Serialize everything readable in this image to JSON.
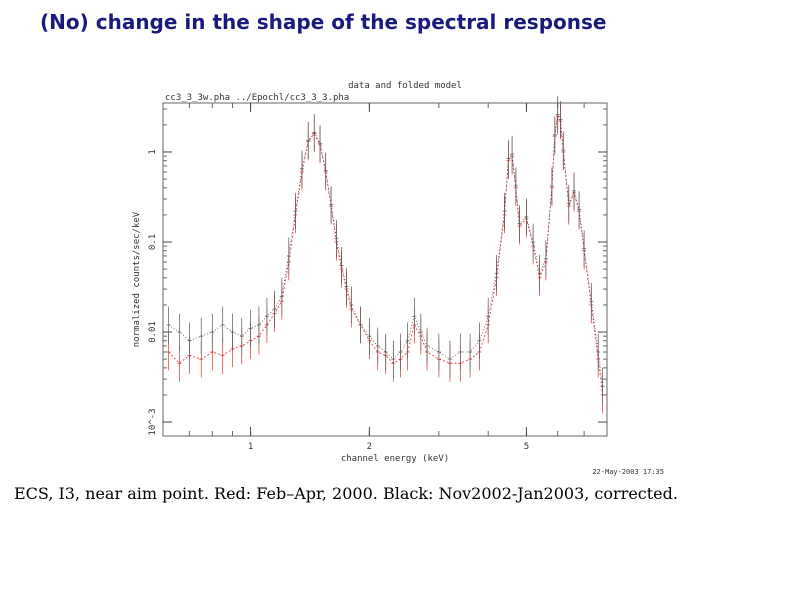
{
  "slide": {
    "title": "(No) change in the shape of the spectral response",
    "caption": "ECS, I3, near aim point. Red: Feb–Apr, 2000. Black: Nov2002-Jan2003, corrected."
  },
  "chart_data": {
    "type": "scatter",
    "title": "data and folded model",
    "subtitle": "cc3_3_3w.pha ../Epochl/cc3_3_3.pha",
    "xlabel": "channel energy (keV)",
    "ylabel": "normalized counts/sec/keV",
    "x_scale": "log",
    "y_scale": "log",
    "xlim": [
      0.6,
      8.0
    ],
    "ylim": [
      0.0007,
      3.5
    ],
    "x_ticks": [
      {
        "value": 1,
        "label": "1"
      },
      {
        "value": 2,
        "label": "2"
      },
      {
        "value": 5,
        "label": "5"
      }
    ],
    "y_ticks": [
      {
        "value": 0.001,
        "label": "10^-3"
      },
      {
        "value": 0.01,
        "label": "0.01"
      },
      {
        "value": 0.1,
        "label": "0.1"
      },
      {
        "value": 1,
        "label": "1"
      }
    ],
    "timestamp": "22-May-2003 17:35",
    "series": [
      {
        "name": "Red: Feb–Apr, 2000",
        "color": "#e03030",
        "points": [
          [
            0.62,
            0.006
          ],
          [
            0.66,
            0.0045
          ],
          [
            0.7,
            0.0055
          ],
          [
            0.75,
            0.005
          ],
          [
            0.8,
            0.006
          ],
          [
            0.85,
            0.0055
          ],
          [
            0.9,
            0.0065
          ],
          [
            0.95,
            0.007
          ],
          [
            1.0,
            0.008
          ],
          [
            1.05,
            0.009
          ],
          [
            1.1,
            0.012
          ],
          [
            1.15,
            0.016
          ],
          [
            1.2,
            0.022
          ],
          [
            1.25,
            0.06
          ],
          [
            1.3,
            0.2
          ],
          [
            1.35,
            0.6
          ],
          [
            1.4,
            1.3
          ],
          [
            1.45,
            1.6
          ],
          [
            1.5,
            1.2
          ],
          [
            1.55,
            0.6
          ],
          [
            1.6,
            0.25
          ],
          [
            1.65,
            0.1
          ],
          [
            1.7,
            0.05
          ],
          [
            1.75,
            0.03
          ],
          [
            1.8,
            0.018
          ],
          [
            1.9,
            0.012
          ],
          [
            2.0,
            0.008
          ],
          [
            2.1,
            0.006
          ],
          [
            2.2,
            0.0055
          ],
          [
            2.3,
            0.0045
          ],
          [
            2.4,
            0.005
          ],
          [
            2.5,
            0.006
          ],
          [
            2.6,
            0.012
          ],
          [
            2.7,
            0.009
          ],
          [
            2.8,
            0.006
          ],
          [
            3.0,
            0.005
          ],
          [
            3.2,
            0.0045
          ],
          [
            3.4,
            0.0045
          ],
          [
            3.6,
            0.005
          ],
          [
            3.8,
            0.006
          ],
          [
            4.0,
            0.012
          ],
          [
            4.2,
            0.04
          ],
          [
            4.4,
            0.2
          ],
          [
            4.5,
            0.8
          ],
          [
            4.6,
            0.9
          ],
          [
            4.7,
            0.4
          ],
          [
            4.8,
            0.15
          ],
          [
            5.0,
            0.18
          ],
          [
            5.2,
            0.09
          ],
          [
            5.4,
            0.04
          ],
          [
            5.6,
            0.06
          ],
          [
            5.8,
            0.4
          ],
          [
            5.9,
            1.5
          ],
          [
            6.0,
            2.5
          ],
          [
            6.1,
            2.2
          ],
          [
            6.2,
            1.0
          ],
          [
            6.4,
            0.25
          ],
          [
            6.6,
            0.35
          ],
          [
            6.8,
            0.22
          ],
          [
            7.0,
            0.08
          ],
          [
            7.3,
            0.02
          ],
          [
            7.6,
            0.005
          ],
          [
            7.8,
            0.002
          ]
        ]
      },
      {
        "name": "Black: Nov2002-Jan2003, corrected",
        "color": "#555555",
        "points": [
          [
            0.62,
            0.012
          ],
          [
            0.66,
            0.01
          ],
          [
            0.7,
            0.008
          ],
          [
            0.75,
            0.009
          ],
          [
            0.8,
            0.01
          ],
          [
            0.85,
            0.012
          ],
          [
            0.9,
            0.01
          ],
          [
            0.95,
            0.009
          ],
          [
            1.0,
            0.011
          ],
          [
            1.05,
            0.012
          ],
          [
            1.1,
            0.015
          ],
          [
            1.15,
            0.018
          ],
          [
            1.2,
            0.025
          ],
          [
            1.25,
            0.07
          ],
          [
            1.3,
            0.22
          ],
          [
            1.35,
            0.65
          ],
          [
            1.4,
            1.35
          ],
          [
            1.45,
            1.65
          ],
          [
            1.5,
            1.25
          ],
          [
            1.55,
            0.62
          ],
          [
            1.6,
            0.26
          ],
          [
            1.65,
            0.11
          ],
          [
            1.7,
            0.055
          ],
          [
            1.75,
            0.032
          ],
          [
            1.8,
            0.02
          ],
          [
            1.9,
            0.012
          ],
          [
            2.0,
            0.009
          ],
          [
            2.1,
            0.007
          ],
          [
            2.2,
            0.006
          ],
          [
            2.3,
            0.005
          ],
          [
            2.4,
            0.006
          ],
          [
            2.5,
            0.008
          ],
          [
            2.6,
            0.015
          ],
          [
            2.7,
            0.01
          ],
          [
            2.8,
            0.007
          ],
          [
            3.0,
            0.006
          ],
          [
            3.2,
            0.005
          ],
          [
            3.4,
            0.006
          ],
          [
            3.6,
            0.006
          ],
          [
            3.8,
            0.008
          ],
          [
            4.0,
            0.015
          ],
          [
            4.2,
            0.045
          ],
          [
            4.4,
            0.22
          ],
          [
            4.5,
            0.85
          ],
          [
            4.6,
            0.95
          ],
          [
            4.7,
            0.42
          ],
          [
            4.8,
            0.16
          ],
          [
            5.0,
            0.19
          ],
          [
            5.2,
            0.1
          ],
          [
            5.4,
            0.045
          ],
          [
            5.6,
            0.065
          ],
          [
            5.8,
            0.42
          ],
          [
            5.9,
            1.55
          ],
          [
            6.0,
            2.6
          ],
          [
            6.1,
            2.3
          ],
          [
            6.2,
            1.05
          ],
          [
            6.4,
            0.27
          ],
          [
            6.6,
            0.37
          ],
          [
            6.8,
            0.23
          ],
          [
            7.0,
            0.085
          ],
          [
            7.3,
            0.022
          ],
          [
            7.6,
            0.006
          ],
          [
            7.8,
            0.0025
          ]
        ]
      }
    ]
  }
}
